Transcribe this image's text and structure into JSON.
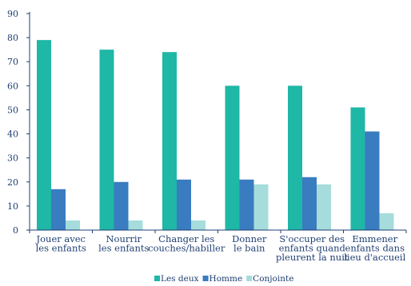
{
  "chart_data": {
    "type": "bar",
    "categories": [
      [
        "Jouer avec",
        "les enfants"
      ],
      [
        "Nourrir",
        "les enfants"
      ],
      [
        "Changer les",
        "couches/habiller"
      ],
      [
        "Donner",
        "le bain"
      ],
      [
        "S'occuper des",
        "enfants quand",
        "pleurent la nuit"
      ],
      [
        "Emmener",
        "enfants dans",
        "lieu d'accueil"
      ]
    ],
    "series": [
      {
        "name": "Les deux",
        "color": "#1fb7a6",
        "values": [
          79,
          75,
          74,
          60,
          60,
          51
        ]
      },
      {
        "name": "Homme",
        "color": "#3a7cc0",
        "values": [
          17,
          20,
          21,
          21,
          22,
          41
        ]
      },
      {
        "name": "Conjointe",
        "color": "#a6dcdc",
        "values": [
          4,
          4,
          4,
          19,
          19,
          7
        ]
      }
    ],
    "ylim": [
      0,
      90
    ],
    "yticks": [
      0,
      10,
      20,
      30,
      40,
      50,
      60,
      70,
      80,
      90
    ],
    "grid": false,
    "legend": "bottom-center"
  }
}
